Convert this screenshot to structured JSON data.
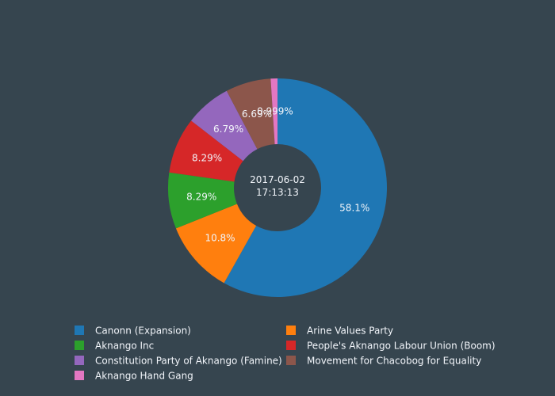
{
  "colors": {
    "background": "#36454f",
    "text": "#f2f5fa",
    "slice_stroke": "#36454f"
  },
  "chart_data": {
    "type": "pie",
    "hole_text": [
      "2017-06-02",
      "17:13:13"
    ],
    "legend_placement": "bottom",
    "sort": "descending",
    "direction": "clockwise",
    "slices": [
      {
        "label": "Canonn (Expansion)",
        "value": 58.1,
        "text": "58.1%",
        "color": "#1f77b4"
      },
      {
        "label": "Arine Values Party",
        "value": 10.8,
        "text": "10.8%",
        "color": "#ff7f0e"
      },
      {
        "label": "Aknango Inc",
        "value": 8.29,
        "text": "8.29%",
        "color": "#2ca02c"
      },
      {
        "label": "People's Aknango Labour Union (Boom)",
        "value": 8.29,
        "text": "8.29%",
        "color": "#d62728"
      },
      {
        "label": "Constitution Party of Aknango (Famine)",
        "value": 6.79,
        "text": "6.79%",
        "color": "#9467bd"
      },
      {
        "label": "Movement for Chacobog for Equality",
        "value": 6.69,
        "text": "6.69%",
        "color": "#8c564b"
      },
      {
        "label": "Aknango Hand Gang",
        "value": 0.999,
        "text": "0.999%",
        "color": "#e377c2"
      }
    ]
  }
}
